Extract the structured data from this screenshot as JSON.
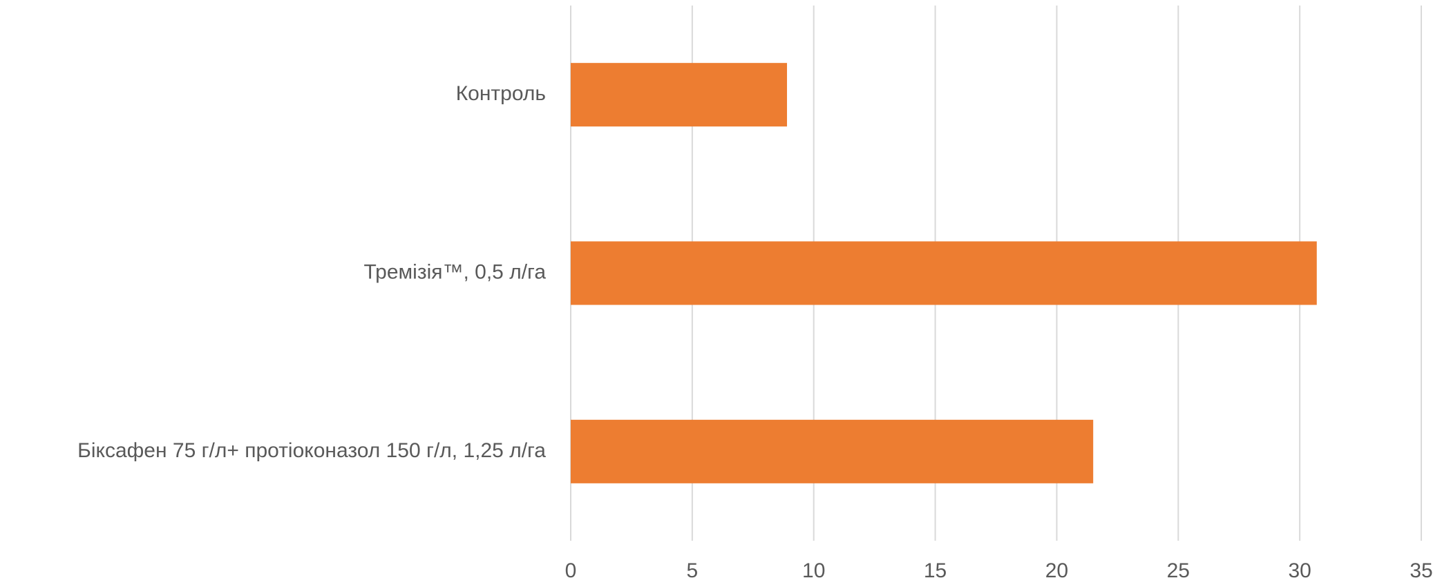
{
  "chart_data": {
    "type": "bar",
    "orientation": "horizontal",
    "categories": [
      "Контроль",
      "Тремізія™, 0,5 л/га",
      "Біксафен 75 г/л+ протіоконазол 150 г/л, 1,25 л/га"
    ],
    "values": [
      8.9,
      30.7,
      21.5
    ],
    "xlim": [
      0,
      35
    ],
    "xticks": [
      "0",
      "5",
      "10",
      "15",
      "20",
      "25",
      "30",
      "35"
    ],
    "title": "",
    "xlabel": "",
    "ylabel": "",
    "grid": true,
    "legend": "none",
    "bar_color": "#ED7D31"
  }
}
